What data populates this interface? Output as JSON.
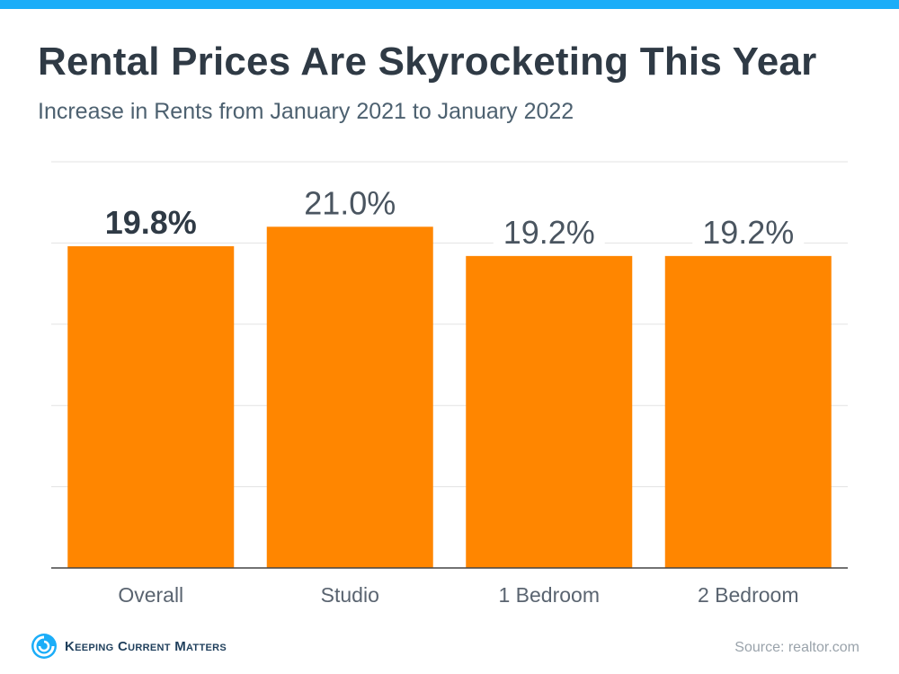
{
  "title": "Rental Prices Are Skyrocketing This Year",
  "subtitle": "Increase in Rents from January 2021 to January 2022",
  "colors": {
    "bar": "#FF8600",
    "accent": "#1BADF8",
    "axis": "#444444",
    "grid": "#e3e3e3"
  },
  "chart_data": {
    "type": "bar",
    "title": "Rental Prices Are Skyrocketing This Year",
    "subtitle": "Increase in Rents from January 2021 to January 2022",
    "categories": [
      "Overall",
      "Studio",
      "1 Bedroom",
      "2 Bedroom"
    ],
    "values": [
      19.8,
      21.0,
      19.2,
      19.2
    ],
    "value_labels": [
      "19.8%",
      "21.0%",
      "19.2%",
      "19.2%"
    ],
    "highlight": "Overall",
    "unit": "%",
    "ylim": [
      0,
      25
    ],
    "xlabel": "",
    "ylabel": "",
    "grid": true,
    "legend": "none"
  },
  "logo": {
    "text": "Keeping Current Matters",
    "icon": "kcm-swirl-icon"
  },
  "source": "Source: realtor.com"
}
